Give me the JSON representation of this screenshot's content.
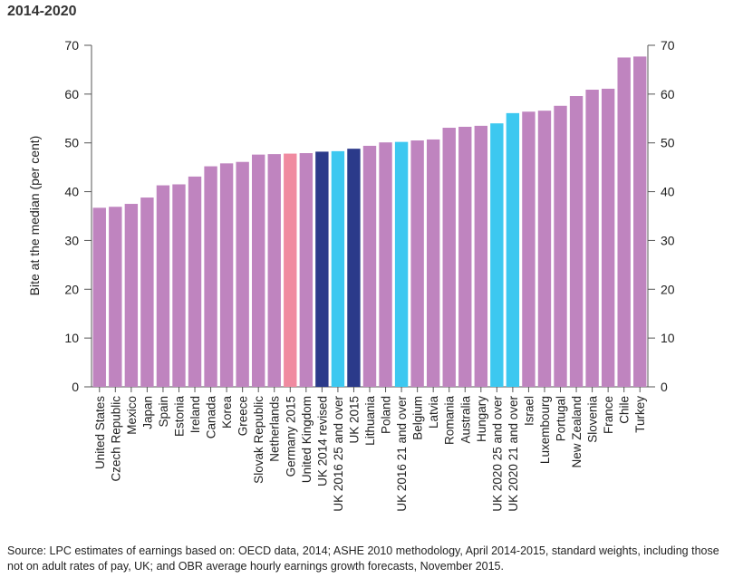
{
  "title": "2014-2020",
  "source": "Source: LPC estimates of earnings based on: OECD data, 2014; ASHE 2010 methodology, April 2014-2015, standard weights, including those not on adult rates of pay, UK; and OBR average hourly earnings growth forecasts, November 2015.",
  "chart_data": {
    "type": "bar",
    "title": "2014-2020",
    "xlabel": "",
    "ylabel": "Bite at the median (per cent)",
    "ylim": [
      0,
      70
    ],
    "yticks": [
      0,
      10,
      20,
      30,
      40,
      50,
      60,
      70
    ],
    "grid": false,
    "secondary_axis": true,
    "colors": {
      "default": "#bf84bf",
      "germany": "#f08aa0",
      "uk_dark": "#2b3a8a",
      "uk_light": "#3cc8f0"
    },
    "categories": [
      "United States",
      "Czech Republic",
      "Mexico",
      "Japan",
      "Spain",
      "Estonia",
      "Ireland",
      "Canada",
      "Korea",
      "Greece",
      "Slovak Republic",
      "Netherlands",
      "Germany 2015",
      "United Kingdom",
      "UK 2014 revised",
      "UK 2016 25 and over",
      "UK 2015",
      "Lithuania",
      "Poland",
      "UK 2016 21 and over",
      "Belgium",
      "Latvia",
      "Romania",
      "Australia",
      "Hungary",
      "UK 2020 25 and over",
      "UK 2020 21 and over",
      "Israel",
      "Luxembourg",
      "Portugal",
      "New Zealand",
      "Slovenia",
      "France",
      "Chile",
      "Turkey"
    ],
    "values": [
      36.7,
      36.9,
      37.5,
      38.8,
      41.3,
      41.5,
      43.1,
      45.2,
      45.8,
      46.1,
      47.6,
      47.7,
      47.8,
      47.9,
      48.2,
      48.3,
      48.8,
      49.4,
      50.1,
      50.2,
      50.5,
      50.7,
      53.1,
      53.3,
      53.5,
      54.0,
      56.1,
      56.4,
      56.6,
      57.6,
      59.6,
      60.9,
      61.1,
      67.5,
      67.7
    ],
    "bar_colors": [
      "default",
      "default",
      "default",
      "default",
      "default",
      "default",
      "default",
      "default",
      "default",
      "default",
      "default",
      "default",
      "germany",
      "default",
      "uk_dark",
      "uk_light",
      "uk_dark",
      "default",
      "default",
      "uk_light",
      "default",
      "default",
      "default",
      "default",
      "default",
      "uk_light",
      "uk_light",
      "default",
      "default",
      "default",
      "default",
      "default",
      "default",
      "default",
      "default"
    ]
  }
}
